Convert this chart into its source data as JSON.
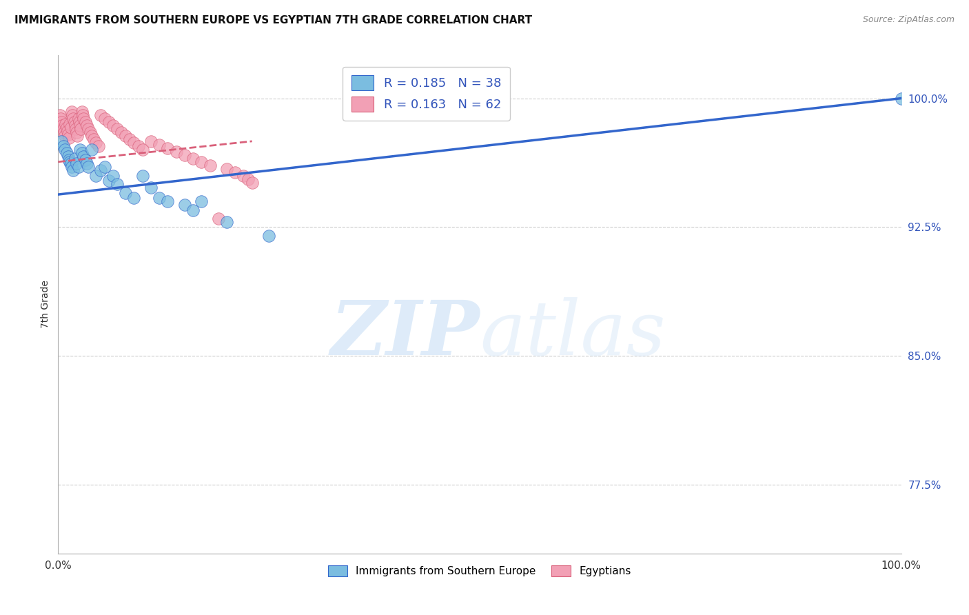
{
  "title": "IMMIGRANTS FROM SOUTHERN EUROPE VS EGYPTIAN 7TH GRADE CORRELATION CHART",
  "source": "Source: ZipAtlas.com",
  "ylabel": "7th Grade",
  "ytick_labels": [
    "100.0%",
    "92.5%",
    "85.0%",
    "77.5%"
  ],
  "ytick_values": [
    1.0,
    0.925,
    0.85,
    0.775
  ],
  "xlim": [
    0.0,
    1.0
  ],
  "ylim": [
    0.735,
    1.025
  ],
  "legend_label1": "Immigrants from Southern Europe",
  "legend_label2": "Egyptians",
  "R1": 0.185,
  "N1": 38,
  "R2": 0.163,
  "N2": 62,
  "color_blue": "#7bbde0",
  "color_pink": "#f2a0b5",
  "color_blue_text": "#3355bb",
  "line_blue": "#3366cc",
  "line_pink": "#d9607a",
  "blue_line_x0": 0.0,
  "blue_line_y0": 0.944,
  "blue_line_x1": 1.0,
  "blue_line_y1": 1.0,
  "pink_line_x0": 0.0,
  "pink_line_y0": 0.963,
  "pink_line_x1": 0.23,
  "pink_line_y1": 0.975,
  "blue_scatter_x": [
    0.004,
    0.006,
    0.008,
    0.01,
    0.012,
    0.013,
    0.014,
    0.015,
    0.016,
    0.018,
    0.02,
    0.022,
    0.024,
    0.026,
    0.028,
    0.03,
    0.032,
    0.034,
    0.036,
    0.04,
    0.045,
    0.05,
    0.055,
    0.06,
    0.065,
    0.07,
    0.08,
    0.09,
    0.1,
    0.11,
    0.12,
    0.13,
    0.15,
    0.16,
    0.17,
    0.2,
    0.25,
    1.0
  ],
  "blue_scatter_y": [
    0.975,
    0.972,
    0.97,
    0.968,
    0.966,
    0.964,
    0.963,
    0.962,
    0.96,
    0.958,
    0.965,
    0.962,
    0.96,
    0.97,
    0.968,
    0.966,
    0.964,
    0.962,
    0.96,
    0.97,
    0.955,
    0.958,
    0.96,
    0.952,
    0.955,
    0.95,
    0.945,
    0.942,
    0.955,
    0.948,
    0.942,
    0.94,
    0.938,
    0.935,
    0.94,
    0.928,
    0.92,
    1.0
  ],
  "pink_scatter_x": [
    0.002,
    0.003,
    0.004,
    0.005,
    0.006,
    0.007,
    0.008,
    0.009,
    0.01,
    0.011,
    0.012,
    0.013,
    0.014,
    0.015,
    0.016,
    0.017,
    0.018,
    0.019,
    0.02,
    0.021,
    0.022,
    0.023,
    0.024,
    0.025,
    0.026,
    0.027,
    0.028,
    0.029,
    0.03,
    0.032,
    0.034,
    0.036,
    0.038,
    0.04,
    0.042,
    0.045,
    0.048,
    0.05,
    0.055,
    0.06,
    0.065,
    0.07,
    0.075,
    0.08,
    0.085,
    0.09,
    0.095,
    0.1,
    0.11,
    0.12,
    0.13,
    0.14,
    0.15,
    0.16,
    0.17,
    0.18,
    0.19,
    0.2,
    0.21,
    0.22,
    0.225,
    0.23
  ],
  "pink_scatter_y": [
    0.99,
    0.988,
    0.986,
    0.984,
    0.982,
    0.98,
    0.978,
    0.985,
    0.983,
    0.981,
    0.979,
    0.977,
    0.985,
    0.983,
    0.992,
    0.99,
    0.988,
    0.986,
    0.984,
    0.982,
    0.98,
    0.978,
    0.988,
    0.986,
    0.984,
    0.982,
    0.992,
    0.99,
    0.988,
    0.986,
    0.984,
    0.982,
    0.98,
    0.978,
    0.976,
    0.974,
    0.972,
    0.99,
    0.988,
    0.986,
    0.984,
    0.982,
    0.98,
    0.978,
    0.976,
    0.974,
    0.972,
    0.97,
    0.975,
    0.973,
    0.971,
    0.969,
    0.967,
    0.965,
    0.963,
    0.961,
    0.93,
    0.959,
    0.957,
    0.955,
    0.953,
    0.951
  ]
}
